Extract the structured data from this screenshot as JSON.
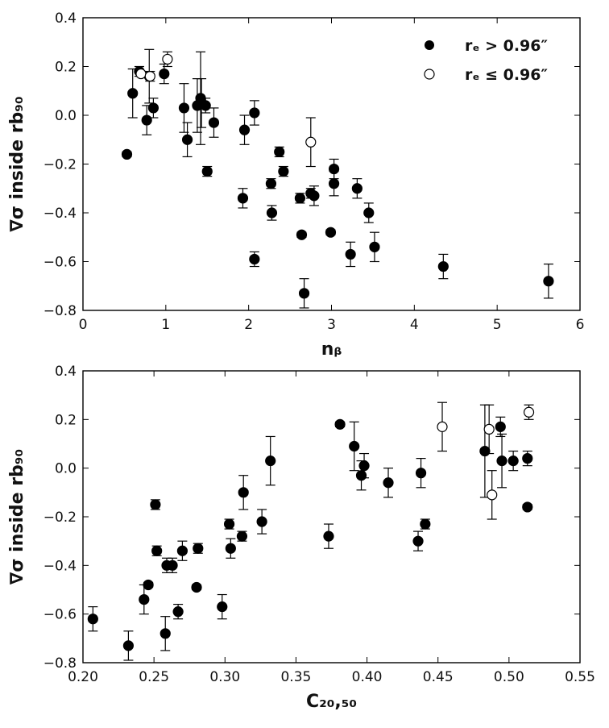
{
  "legend": {
    "filled_label": "rₑ > 0.96″",
    "open_label": "rₑ ≤ 0.96″"
  },
  "chart_data": [
    {
      "type": "scatter",
      "xlabel": "nᵦ",
      "ylabel": "∇σ inside rb₉₀",
      "xlim": [
        0,
        6
      ],
      "ylim": [
        -0.8,
        0.4
      ],
      "xticks": [
        0,
        1,
        2,
        3,
        4,
        5,
        6
      ],
      "yticks": [
        -0.8,
        -0.6,
        -0.4,
        -0.2,
        0.0,
        0.2,
        0.4
      ],
      "xtick_labels": [
        "0",
        "1",
        "2",
        "3",
        "4",
        "5",
        "6"
      ],
      "ytick_labels": [
        "−0.8",
        "−0.6",
        "−0.4",
        "−0.2",
        "0.0",
        "0.2",
        "0.4"
      ],
      "legend_position": "top-right",
      "series": [
        {
          "name": "rₑ > 0.96″",
          "marker": "filled",
          "points": [
            {
              "x": 0.53,
              "y": -0.16,
              "err": 0.01
            },
            {
              "x": 0.6,
              "y": 0.09,
              "err": 0.1
            },
            {
              "x": 0.68,
              "y": 0.18,
              "err": 0.02
            },
            {
              "x": 0.77,
              "y": -0.02,
              "err": 0.06
            },
            {
              "x": 0.8,
              "y": 0.16,
              "err": 0.11
            },
            {
              "x": 0.85,
              "y": 0.03,
              "err": 0.04
            },
            {
              "x": 0.98,
              "y": 0.17,
              "err": 0.04
            },
            {
              "x": 1.22,
              "y": 0.03,
              "err": 0.1
            },
            {
              "x": 1.26,
              "y": -0.1,
              "err": 0.07
            },
            {
              "x": 1.38,
              "y": 0.04,
              "err": 0.11
            },
            {
              "x": 1.42,
              "y": 0.07,
              "err": 0.19
            },
            {
              "x": 1.43,
              "y": 0.05,
              "err": 0.1
            },
            {
              "x": 1.48,
              "y": 0.04,
              "err": 0.03
            },
            {
              "x": 1.5,
              "y": -0.23,
              "err": 0.02
            },
            {
              "x": 1.58,
              "y": -0.03,
              "err": 0.06
            },
            {
              "x": 1.93,
              "y": -0.34,
              "err": 0.04
            },
            {
              "x": 1.95,
              "y": -0.06,
              "err": 0.06
            },
            {
              "x": 2.07,
              "y": -0.59,
              "err": 0.03
            },
            {
              "x": 2.07,
              "y": 0.01,
              "err": 0.05
            },
            {
              "x": 2.27,
              "y": -0.28,
              "err": 0.02
            },
            {
              "x": 2.28,
              "y": -0.4,
              "err": 0.03
            },
            {
              "x": 2.37,
              "y": -0.15,
              "err": 0.02
            },
            {
              "x": 2.42,
              "y": -0.23,
              "err": 0.02
            },
            {
              "x": 2.62,
              "y": -0.34,
              "err": 0.02
            },
            {
              "x": 2.64,
              "y": -0.49,
              "err": 0.01
            },
            {
              "x": 2.67,
              "y": -0.73,
              "err": 0.06
            },
            {
              "x": 2.75,
              "y": -0.32,
              "err": 0.02
            },
            {
              "x": 2.79,
              "y": -0.33,
              "err": 0.04
            },
            {
              "x": 2.99,
              "y": -0.48,
              "err": 0.01
            },
            {
              "x": 3.03,
              "y": -0.22,
              "err": 0.04
            },
            {
              "x": 3.03,
              "y": -0.28,
              "err": 0.05
            },
            {
              "x": 3.23,
              "y": -0.57,
              "err": 0.05
            },
            {
              "x": 3.31,
              "y": -0.3,
              "err": 0.04
            },
            {
              "x": 3.45,
              "y": -0.4,
              "err": 0.04
            },
            {
              "x": 3.52,
              "y": -0.54,
              "err": 0.06
            },
            {
              "x": 4.35,
              "y": -0.62,
              "err": 0.05
            },
            {
              "x": 5.62,
              "y": -0.68,
              "err": 0.07
            }
          ]
        },
        {
          "name": "rₑ ≤ 0.96″",
          "marker": "open",
          "points": [
            {
              "x": 0.7,
              "y": 0.17,
              "err": 0.01
            },
            {
              "x": 0.81,
              "y": 0.16,
              "err": 0.02
            },
            {
              "x": 1.02,
              "y": 0.23,
              "err": 0.03
            },
            {
              "x": 2.75,
              "y": -0.11,
              "err": 0.1
            }
          ]
        }
      ]
    },
    {
      "type": "scatter",
      "xlabel": "C₂₀,₅₀",
      "ylabel": "∇σ inside rb₉₀",
      "xlim": [
        0.2,
        0.55
      ],
      "ylim": [
        -0.8,
        0.4
      ],
      "xticks": [
        0.2,
        0.25,
        0.3,
        0.35,
        0.4,
        0.45,
        0.5,
        0.55
      ],
      "yticks": [
        -0.8,
        -0.6,
        -0.4,
        -0.2,
        0.0,
        0.2,
        0.4
      ],
      "xtick_labels": [
        "0.20",
        "0.25",
        "0.30",
        "0.35",
        "0.40",
        "0.45",
        "0.50",
        "0.55"
      ],
      "ytick_labels": [
        "−0.8",
        "−0.6",
        "−0.4",
        "−0.2",
        "0.0",
        "0.2",
        "0.4"
      ],
      "series": [
        {
          "name": "rₑ > 0.96″",
          "marker": "filled",
          "points": [
            {
              "x": 0.207,
              "y": -0.62,
              "err": 0.05
            },
            {
              "x": 0.232,
              "y": -0.73,
              "err": 0.06
            },
            {
              "x": 0.243,
              "y": -0.54,
              "err": 0.06
            },
            {
              "x": 0.246,
              "y": -0.48,
              "err": 0.01
            },
            {
              "x": 0.251,
              "y": -0.15,
              "err": 0.02
            },
            {
              "x": 0.252,
              "y": -0.34,
              "err": 0.02
            },
            {
              "x": 0.258,
              "y": -0.68,
              "err": 0.07
            },
            {
              "x": 0.259,
              "y": -0.4,
              "err": 0.03
            },
            {
              "x": 0.263,
              "y": -0.4,
              "err": 0.03
            },
            {
              "x": 0.267,
              "y": -0.59,
              "err": 0.03
            },
            {
              "x": 0.27,
              "y": -0.34,
              "err": 0.04
            },
            {
              "x": 0.28,
              "y": -0.49,
              "err": 0.01
            },
            {
              "x": 0.281,
              "y": -0.33,
              "err": 0.02
            },
            {
              "x": 0.298,
              "y": -0.57,
              "err": 0.05
            },
            {
              "x": 0.303,
              "y": -0.23,
              "err": 0.02
            },
            {
              "x": 0.304,
              "y": -0.33,
              "err": 0.04
            },
            {
              "x": 0.312,
              "y": -0.28,
              "err": 0.02
            },
            {
              "x": 0.313,
              "y": -0.1,
              "err": 0.07
            },
            {
              "x": 0.326,
              "y": -0.22,
              "err": 0.05
            },
            {
              "x": 0.332,
              "y": 0.03,
              "err": 0.1
            },
            {
              "x": 0.373,
              "y": -0.28,
              "err": 0.05
            },
            {
              "x": 0.381,
              "y": 0.18,
              "err": 0.01
            },
            {
              "x": 0.391,
              "y": 0.09,
              "err": 0.1
            },
            {
              "x": 0.396,
              "y": -0.03,
              "err": 0.06
            },
            {
              "x": 0.398,
              "y": 0.01,
              "err": 0.05
            },
            {
              "x": 0.415,
              "y": -0.06,
              "err": 0.06
            },
            {
              "x": 0.436,
              "y": -0.3,
              "err": 0.04
            },
            {
              "x": 0.438,
              "y": -0.02,
              "err": 0.06
            },
            {
              "x": 0.441,
              "y": -0.23,
              "err": 0.02
            },
            {
              "x": 0.483,
              "y": 0.07,
              "err": 0.19
            },
            {
              "x": 0.494,
              "y": 0.17,
              "err": 0.04
            },
            {
              "x": 0.495,
              "y": 0.03,
              "err": 0.11
            },
            {
              "x": 0.503,
              "y": 0.03,
              "err": 0.04
            },
            {
              "x": 0.513,
              "y": 0.04,
              "err": 0.03
            },
            {
              "x": 0.513,
              "y": -0.16,
              "err": 0.01
            }
          ]
        },
        {
          "name": "rₑ ≤ 0.96″",
          "marker": "open",
          "points": [
            {
              "x": 0.453,
              "y": 0.17,
              "err": 0.1
            },
            {
              "x": 0.486,
              "y": 0.16,
              "err": 0.1
            },
            {
              "x": 0.488,
              "y": -0.11,
              "err": 0.1
            },
            {
              "x": 0.514,
              "y": 0.23,
              "err": 0.03
            }
          ]
        }
      ]
    }
  ]
}
